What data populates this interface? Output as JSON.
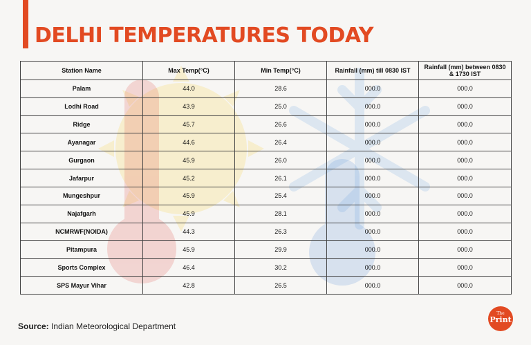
{
  "title": "DELHI TEMPERATURES TODAY",
  "source_label": "Source:",
  "source_text": "Indian Meteorological Department",
  "logo_small": "The",
  "logo_big": "Print",
  "accent_color": "#e24a22",
  "chart_data": {
    "type": "table",
    "columns": [
      "Station Name",
      "Max Temp(°C)",
      "Min Temp(°C)",
      "Rainfall (mm) till 0830 IST",
      "Rainfall (mm) between 0830 & 1730 IST"
    ],
    "rows": [
      [
        "Palam",
        "44.0",
        "28.6",
        "000.0",
        "000.0"
      ],
      [
        "Lodhi Road",
        "43.9",
        "25.0",
        "000.0",
        "000.0"
      ],
      [
        "Ridge",
        "45.7",
        "26.6",
        "000.0",
        "000.0"
      ],
      [
        "Ayanagar",
        "44.6",
        "26.4",
        "000.0",
        "000.0"
      ],
      [
        "Gurgaon",
        "45.9",
        "26.0",
        "000.0",
        "000.0"
      ],
      [
        "Jafarpur",
        "45.2",
        "26.1",
        "000.0",
        "000.0"
      ],
      [
        "Mungeshpur",
        "45.9",
        "25.4",
        "000.0",
        "000.0"
      ],
      [
        "Najafgarh",
        "45.9",
        "28.1",
        "000.0",
        "000.0"
      ],
      [
        "NCMRWF(NOIDA)",
        "44.3",
        "26.3",
        "000.0",
        "000.0"
      ],
      [
        "Pitampura",
        "45.9",
        "29.9",
        "000.0",
        "000.0"
      ],
      [
        "Sports Complex",
        "46.4",
        "30.2",
        "000.0",
        "000.0"
      ],
      [
        "SPS Mayur Vihar",
        "42.8",
        "26.5",
        "000.0",
        "000.0"
      ]
    ]
  }
}
